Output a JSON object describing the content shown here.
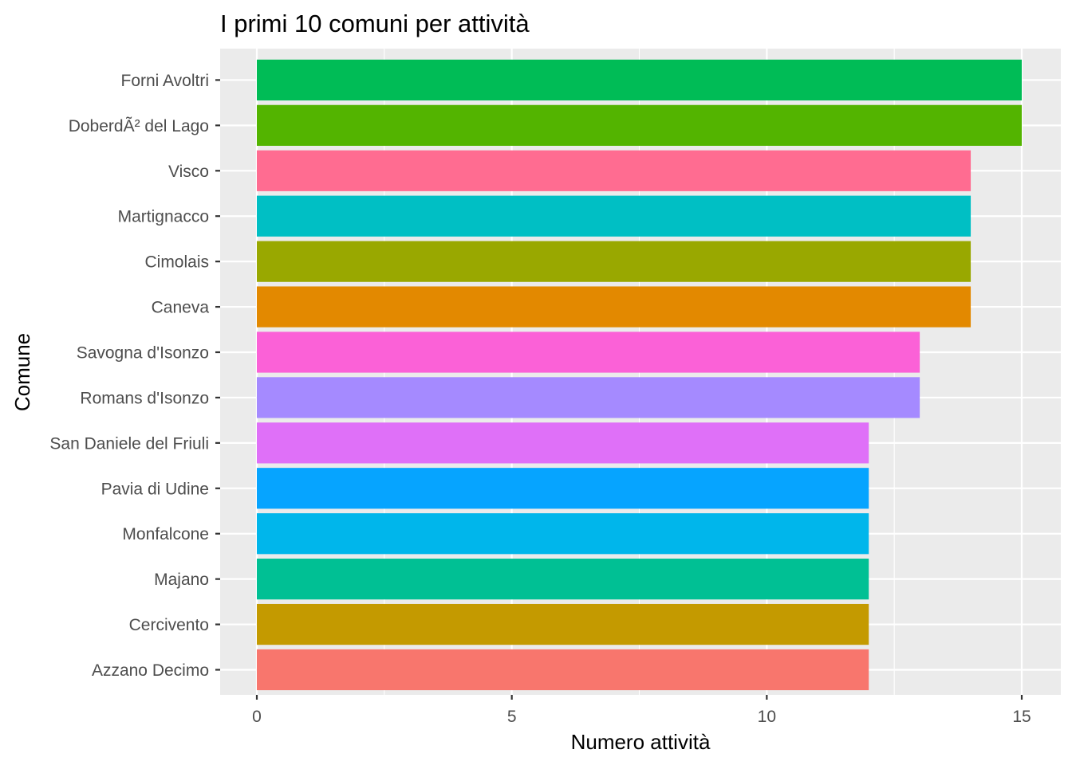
{
  "chart_data": {
    "type": "bar",
    "orientation": "horizontal",
    "title": "I primi 10 comuni per attività",
    "xlabel": "Numero attività",
    "ylabel": "Comune",
    "xlim": [
      0,
      15
    ],
    "x_ticks": [
      0,
      5,
      10,
      15
    ],
    "grid": true,
    "legend": "none",
    "categories": [
      "Azzano Decimo",
      "Cercivento",
      "Majano",
      "Monfalcone",
      "Pavia di Udine",
      "San Daniele del Friuli",
      "Romans d'Isonzo",
      "Savogna d'Isonzo",
      "Caneva",
      "Cimolais",
      "Martignacco",
      "Visco",
      "DoberdÃ² del Lago",
      "Forni Avoltri"
    ],
    "values": [
      12,
      12,
      12,
      12,
      12,
      12,
      13,
      13,
      14,
      14,
      14,
      14,
      15,
      15
    ],
    "colors": [
      "#F8766D",
      "#C49A00",
      "#00C094",
      "#00B6EB",
      "#06A4FF",
      "#DF70F8",
      "#A58AFF",
      "#FB61D7",
      "#E38900",
      "#99A800",
      "#00BFC4",
      "#FF6C91",
      "#53B400",
      "#00BC56"
    ]
  }
}
